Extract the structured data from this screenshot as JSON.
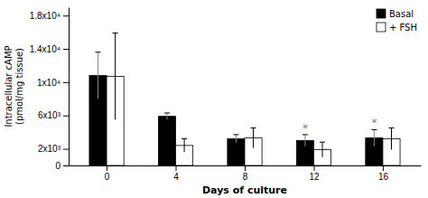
{
  "chart_data": {
    "type": "bar",
    "xlabel": "Days of culture",
    "ylabel": "Intracellular cAMP\n(pmol/mg tissue)",
    "x": [
      0,
      4,
      8,
      12,
      16
    ],
    "series": [
      {
        "name": "Basal",
        "color": "#000000",
        "values": [
          10800,
          5900,
          3200,
          3000,
          3300
        ],
        "errors": [
          2800,
          400,
          500,
          700,
          1000
        ]
      },
      {
        "name": "+ FSH",
        "color": "#ffffff",
        "values": [
          10700,
          2400,
          3300,
          1900,
          3200
        ],
        "errors": [
          5200,
          800,
          1200,
          900,
          1300
        ]
      }
    ],
    "xlim": [
      -2.2,
      18.2
    ],
    "xticks": [
      0,
      4,
      8,
      12,
      16
    ],
    "ylim": [
      0,
      19000
    ],
    "yticks": [
      0,
      {
        "value": 2000,
        "label": "2x10³"
      },
      {
        "value": 6000,
        "label": "6x10³"
      },
      {
        "value": 10000,
        "label": "1x10⁴"
      },
      {
        "value": 14000,
        "label": "1.4x10⁴"
      },
      {
        "value": 18000,
        "label": "1.8x10⁴"
      }
    ],
    "legend": "upper right",
    "annotations": [
      {
        "text": "*",
        "x": 12
      },
      {
        "text": "*",
        "x": 16
      }
    ]
  }
}
